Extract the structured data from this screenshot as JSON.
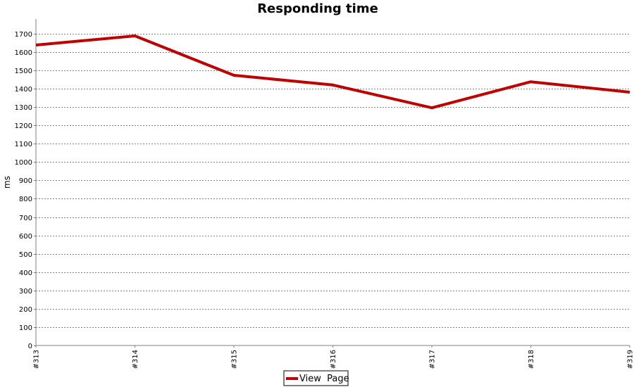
{
  "chart_data": {
    "type": "line",
    "title": "Responding time",
    "xlabel": "",
    "ylabel": "ms",
    "categories": [
      "#313",
      "#314",
      "#315",
      "#316",
      "#317",
      "#318",
      "#319"
    ],
    "series": [
      {
        "name": "View  Page",
        "values": [
          1638,
          1688,
          1473,
          1420,
          1296,
          1438,
          1381
        ],
        "color": "#c00000"
      }
    ],
    "ylim": [
      0,
      1780
    ],
    "yticks": [
      0,
      100,
      200,
      300,
      400,
      500,
      600,
      700,
      800,
      900,
      1000,
      1100,
      1200,
      1300,
      1400,
      1500,
      1600,
      1700
    ],
    "grid": true,
    "legend_position": "bottom-center"
  }
}
